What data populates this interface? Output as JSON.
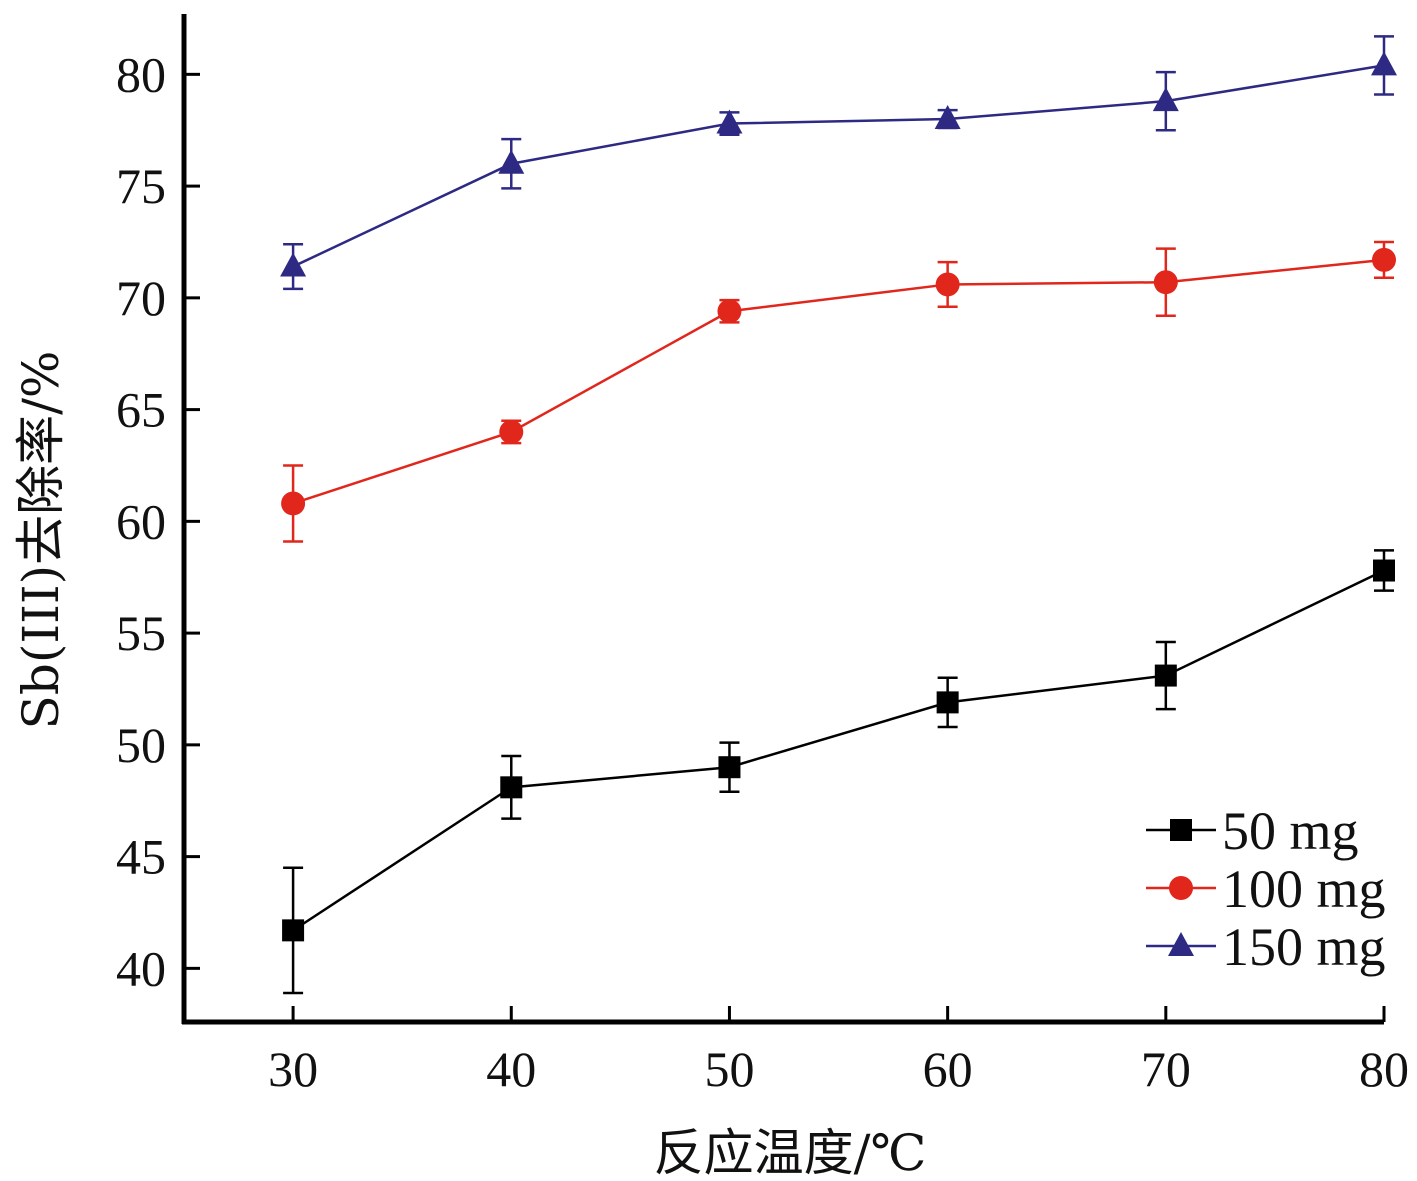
{
  "chart_data": {
    "type": "line",
    "xlabel": "反应温度/℃",
    "ylabel": "Sb(III)去除率/%",
    "xlim": [
      25,
      80
    ],
    "ylim": [
      37.6,
      82.7
    ],
    "x_ticks": [
      30,
      40,
      50,
      60,
      70,
      80
    ],
    "y_ticks": [
      40,
      45,
      50,
      55,
      60,
      65,
      70,
      75,
      80
    ],
    "grid": false,
    "legend_position": "bottom-right",
    "x": [
      30,
      40,
      50,
      60,
      70,
      80
    ],
    "series": [
      {
        "name": "50 mg",
        "color": "#000000",
        "marker": "square",
        "values": [
          41.7,
          48.1,
          49.0,
          51.9,
          53.1,
          57.8
        ],
        "errors": [
          2.8,
          1.4,
          1.1,
          1.1,
          1.5,
          0.9
        ]
      },
      {
        "name": "100 mg",
        "color": "#e1261c",
        "marker": "circle",
        "values": [
          60.8,
          64.0,
          69.4,
          70.6,
          70.7,
          71.7
        ],
        "errors": [
          1.7,
          0.5,
          0.5,
          1.0,
          1.5,
          0.8
        ]
      },
      {
        "name": "150 mg",
        "color": "#2e2a84",
        "marker": "triangle",
        "values": [
          71.4,
          76.0,
          77.8,
          78.0,
          78.8,
          80.4
        ],
        "errors": [
          1.0,
          1.1,
          0.5,
          0.4,
          1.3,
          1.3
        ]
      }
    ]
  }
}
